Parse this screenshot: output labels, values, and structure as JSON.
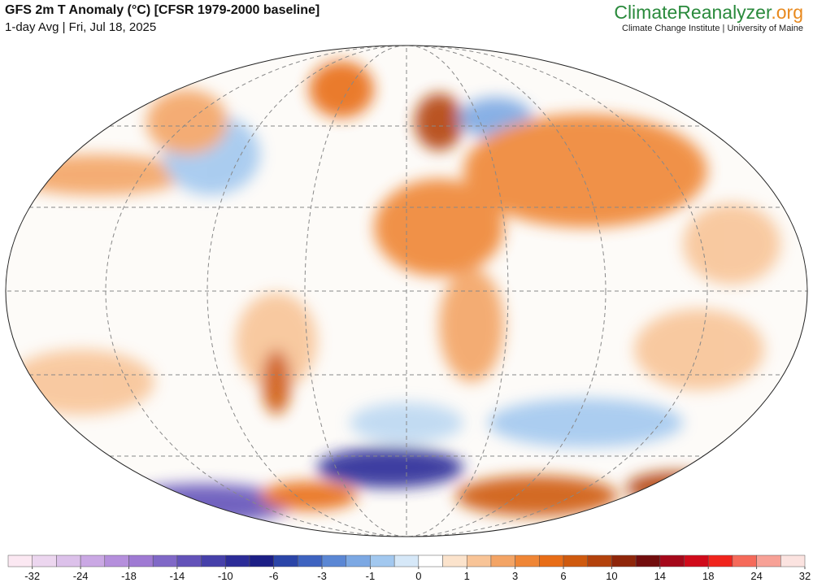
{
  "header": {
    "title": "GFS 2m T Anomaly (°C) [CFSR 1979-2000 baseline]",
    "subtitle": "1-day Avg | Fri, Jul 18, 2025",
    "brand": "ClimateReanalyzer",
    "brand_suffix": ".org",
    "institution": "Climate Change Institute | University of Maine"
  },
  "colorbar": {
    "ticks": [
      -32,
      -24,
      -18,
      -14,
      -10,
      -6,
      -3,
      -1,
      0,
      1,
      3,
      6,
      10,
      14,
      18,
      24,
      32
    ],
    "colors": [
      "#fbe8f2",
      "#ecd6ef",
      "#dcc1ea",
      "#caa8e4",
      "#b58fdc",
      "#9f7ad3",
      "#8068c7",
      "#6352b9",
      "#4640aa",
      "#2c2c98",
      "#1c1f86",
      "#2b45a8",
      "#3e63c0",
      "#5b87d4",
      "#7ca8e3",
      "#a2c8ef",
      "#d6e8f8",
      "#ffffff",
      "#fbe3cc",
      "#f8c497",
      "#f3a465",
      "#ef8636",
      "#e86d17",
      "#cf5a0e",
      "#b3420c",
      "#8f260a",
      "#720d0d",
      "#a5081a",
      "#d00a1a",
      "#f0241c",
      "#f56a5a",
      "#f7a196",
      "#fbe3e0"
    ]
  }
}
